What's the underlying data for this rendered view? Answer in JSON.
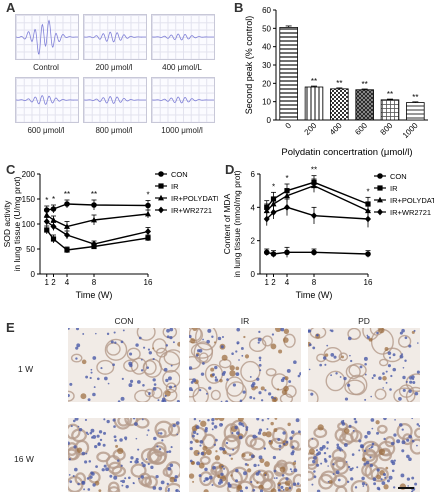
{
  "panels": {
    "a": "A",
    "b": "B",
    "c": "C",
    "d": "D",
    "e": "E"
  },
  "panel_a": {
    "thumbnails": [
      {
        "label": "Control"
      },
      {
        "label": "200 μmol/l"
      },
      {
        "label": "400 μmol/L"
      },
      {
        "label": "600 μmol/l"
      },
      {
        "label": "800 μmol/l"
      },
      {
        "label": "1000 μmol/l"
      }
    ],
    "trace_color": "#8080d8"
  },
  "chart_data": [
    {
      "type": "bar",
      "categories": [
        "0",
        "200",
        "400",
        "600",
        "800",
        "1000"
      ],
      "values": [
        50.5,
        18,
        17,
        16.5,
        11,
        9.5
      ],
      "errors": [
        0.8,
        0.5,
        0.5,
        0.4,
        0.4,
        0.4
      ],
      "significance": [
        "",
        "**",
        "**",
        "**",
        "**",
        "**"
      ],
      "xlabel": "Polydatin concertration (μmol/l)",
      "ylabel": "Second peak (% control)",
      "ylim": [
        0,
        60
      ],
      "yticks": [
        "0",
        "10",
        "20",
        "30",
        "40",
        "50",
        "60"
      ]
    },
    {
      "type": "line",
      "x": [
        1,
        2,
        4,
        8,
        16
      ],
      "xticks": [
        "1",
        "2",
        "4",
        "8",
        "16"
      ],
      "xlabel": "Time (W)",
      "ylabel": "SOD activity\nin lung tissue (U/mg prot)",
      "ylim": [
        0,
        200
      ],
      "yticks": [
        "0",
        "50",
        "100",
        "150",
        "200"
      ],
      "series": [
        {
          "name": "CON",
          "values": [
            128,
            130,
            140,
            138,
            137
          ],
          "err": [
            8,
            8,
            8,
            10,
            10
          ]
        },
        {
          "name": "IR",
          "values": [
            88,
            70,
            48,
            55,
            72
          ],
          "err": [
            8,
            8,
            6,
            5,
            6
          ]
        },
        {
          "name": "IR+POLYDATIN",
          "values": [
            118,
            108,
            95,
            108,
            120
          ],
          "err": [
            8,
            8,
            10,
            10,
            8
          ]
        },
        {
          "name": "IR+WR2721",
          "values": [
            105,
            95,
            78,
            60,
            85
          ],
          "err": [
            8,
            8,
            8,
            6,
            8
          ]
        }
      ],
      "significance": [
        "*",
        "*",
        "**",
        "**",
        "*"
      ],
      "legend_placement": "right"
    },
    {
      "type": "line",
      "x": [
        1,
        2,
        4,
        8,
        16
      ],
      "xticks": [
        "1",
        "2",
        "4",
        "8",
        "16"
      ],
      "xlabel": "Time (W)",
      "ylabel": "Content of MDA\nin lung tissue (nmol/mg prot)",
      "ylim": [
        0,
        6
      ],
      "yticks": [
        "0",
        "2",
        "4",
        "6"
      ],
      "series": [
        {
          "name": "CON",
          "values": [
            1.3,
            1.2,
            1.3,
            1.3,
            1.2
          ],
          "err": [
            0.2,
            0.2,
            0.3,
            0.2,
            0.2
          ]
        },
        {
          "name": "IR",
          "values": [
            4.0,
            4.5,
            5.0,
            5.5,
            4.2
          ],
          "err": [
            0.4,
            0.4,
            0.4,
            0.4,
            0.4
          ]
        },
        {
          "name": "IR+POLYDATIN",
          "values": [
            3.8,
            4.2,
            4.7,
            5.3,
            3.8
          ],
          "err": [
            0.4,
            0.4,
            0.4,
            0.4,
            0.4
          ]
        },
        {
          "name": "IR+WR2721",
          "values": [
            3.3,
            3.7,
            4.0,
            3.5,
            3.3
          ],
          "err": [
            0.4,
            0.4,
            0.5,
            0.5,
            0.5
          ]
        }
      ],
      "significance": [
        "",
        "*",
        "*",
        "**",
        "*"
      ],
      "legend_placement": "right"
    }
  ],
  "panel_e": {
    "columns": [
      "CON",
      "IR",
      "PD"
    ],
    "rows": [
      "1 W",
      "16 W"
    ]
  }
}
